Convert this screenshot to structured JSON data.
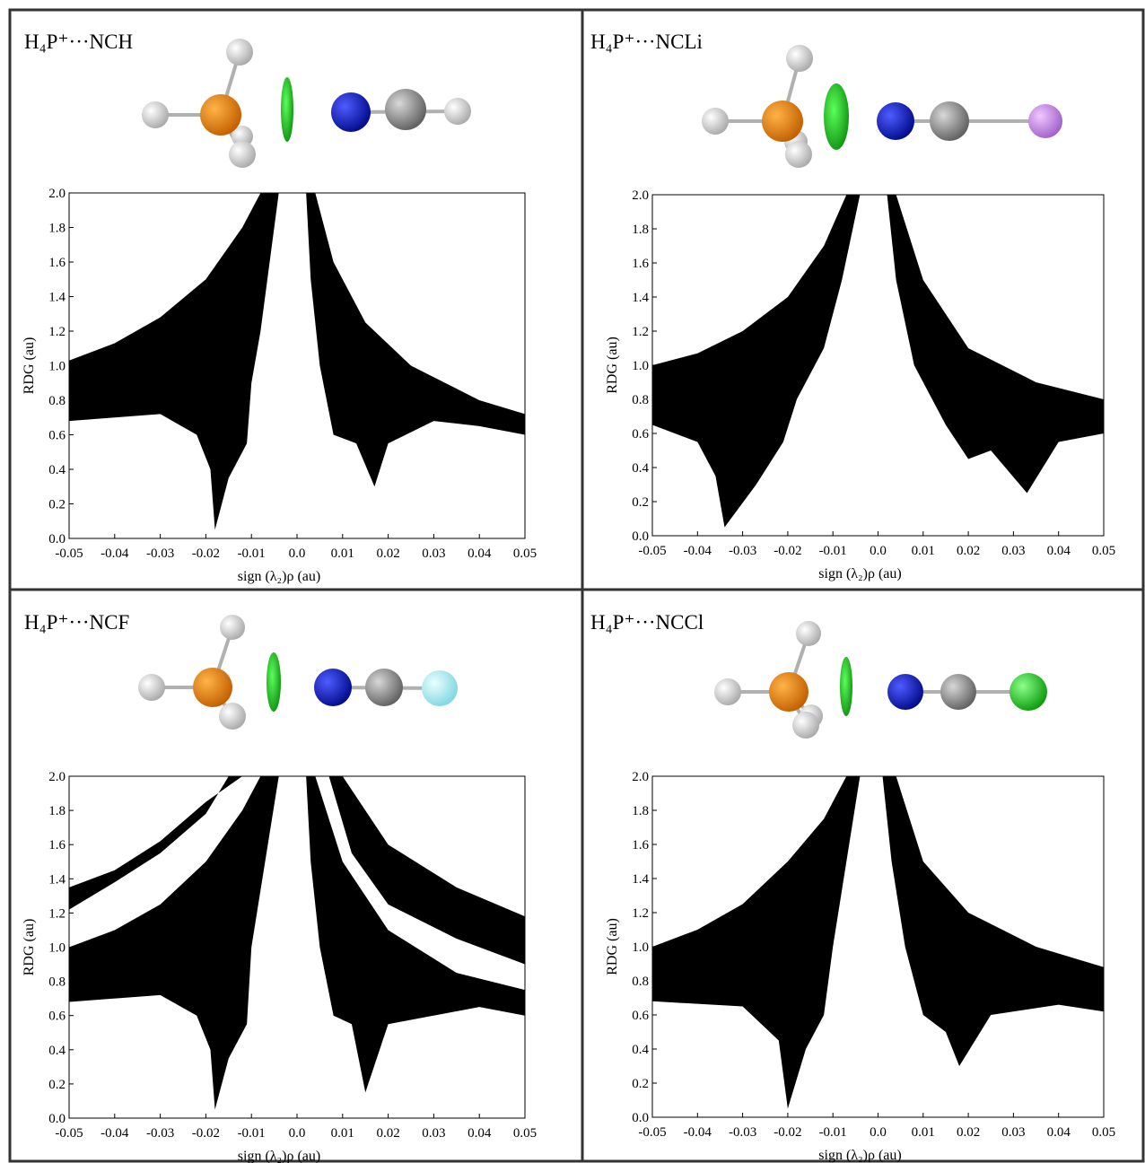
{
  "chart_data": [
    {
      "type": "area",
      "title": "H₄P⁺···NCH",
      "x_label": "sign (λ₂)ρ  (au)",
      "y_label": "RDG (au)",
      "xlim": [
        -0.05,
        0.05
      ],
      "ylim": [
        0,
        2
      ],
      "xticks": [
        -0.05,
        -0.04,
        -0.03,
        -0.02,
        -0.01,
        {
          "value": 0,
          "label": "0.0"
        },
        0.01,
        0.02,
        0.03,
        0.04,
        0.05
      ],
      "yticks": [
        {
          "value": 0,
          "label": "0.0"
        },
        0.2,
        0.4,
        0.6,
        0.8,
        {
          "value": 1,
          "label": "1.0"
        },
        1.2,
        1.4,
        1.6,
        1.8,
        {
          "value": 2,
          "label": "2.0"
        }
      ],
      "series": [
        {
          "color": "#000000",
          "x": [
            -0.05,
            -0.04,
            -0.03,
            -0.02,
            -0.012,
            -0.008,
            -0.004,
            -0.006,
            -0.008,
            -0.01,
            -0.011,
            -0.015,
            -0.018,
            -0.019,
            -0.022,
            -0.03,
            -0.04,
            -0.05
          ],
          "values": [
            1.03,
            1.13,
            1.28,
            1.5,
            1.8,
            2.0,
            2.0,
            1.6,
            1.2,
            0.9,
            0.55,
            0.35,
            0.05,
            0.4,
            0.6,
            0.72,
            0.7,
            0.68
          ]
        },
        {
          "color": "#000000",
          "x": [
            0.002,
            0.004,
            0.008,
            0.015,
            0.025,
            0.04,
            0.05,
            0.05,
            0.04,
            0.03,
            0.02,
            0.017,
            0.013,
            0.008,
            0.005,
            0.003
          ],
          "values": [
            2.0,
            2.0,
            1.6,
            1.25,
            1.0,
            0.8,
            0.72,
            0.6,
            0.65,
            0.68,
            0.55,
            0.3,
            0.55,
            0.6,
            1.0,
            1.5
          ]
        }
      ]
    },
    {
      "type": "area",
      "title": "H₄P⁺···NCLi",
      "x_label": "sign (λ₂)ρ  (au)",
      "y_label": "RDG (au)",
      "xlim": [
        -0.05,
        0.05
      ],
      "ylim": [
        0,
        2
      ],
      "xticks": [
        -0.05,
        -0.04,
        -0.03,
        -0.02,
        -0.01,
        {
          "value": 0,
          "label": "0.0"
        },
        0.01,
        0.02,
        0.03,
        0.04,
        0.05
      ],
      "yticks": [
        {
          "value": 0,
          "label": "0.0"
        },
        0.2,
        0.4,
        0.6,
        0.8,
        {
          "value": 1,
          "label": "1.0"
        },
        1.2,
        1.4,
        1.6,
        1.8,
        {
          "value": 2,
          "label": "2.0"
        }
      ],
      "series": [
        {
          "color": "#000000",
          "x": [
            -0.05,
            -0.04,
            -0.03,
            -0.02,
            -0.012,
            -0.007,
            -0.004,
            -0.008,
            -0.012,
            -0.018,
            -0.021,
            -0.027,
            -0.034,
            -0.036,
            -0.04,
            -0.05
          ],
          "values": [
            1.0,
            1.07,
            1.2,
            1.4,
            1.7,
            2.0,
            2.0,
            1.5,
            1.1,
            0.8,
            0.55,
            0.3,
            0.05,
            0.35,
            0.55,
            0.65
          ]
        },
        {
          "color": "#000000",
          "x": [
            0.002,
            0.004,
            0.01,
            0.02,
            0.035,
            0.05,
            0.05,
            0.04,
            0.033,
            0.025,
            0.02,
            0.015,
            0.008,
            0.004
          ],
          "values": [
            2.0,
            2.0,
            1.5,
            1.1,
            0.9,
            0.8,
            0.6,
            0.55,
            0.25,
            0.5,
            0.45,
            0.65,
            1.0,
            1.5
          ]
        }
      ]
    },
    {
      "type": "area",
      "title": "H₄P⁺···NCF",
      "x_label": "sign (λ₂)ρ  (au)",
      "y_label": "RDG (au)",
      "xlim": [
        -0.05,
        0.05
      ],
      "ylim": [
        0,
        2
      ],
      "xticks": [
        -0.05,
        -0.04,
        -0.03,
        -0.02,
        -0.01,
        {
          "value": 0,
          "label": "0.0"
        },
        0.01,
        0.02,
        0.03,
        0.04,
        0.05
      ],
      "yticks": [
        {
          "value": 0,
          "label": "0.0"
        },
        0.2,
        0.4,
        0.6,
        0.8,
        {
          "value": 1,
          "label": "1.0"
        },
        1.2,
        1.4,
        1.6,
        1.8,
        {
          "value": 2,
          "label": "2.0"
        }
      ],
      "series": [
        {
          "color": "#000000",
          "x": [
            -0.05,
            -0.04,
            -0.03,
            -0.02,
            -0.012,
            -0.008,
            -0.004,
            -0.007,
            -0.01,
            -0.011,
            -0.015,
            -0.018,
            -0.019,
            -0.022,
            -0.03,
            -0.05
          ],
          "values": [
            1.0,
            1.1,
            1.25,
            1.5,
            1.8,
            2.0,
            2.0,
            1.5,
            1.0,
            0.55,
            0.35,
            0.05,
            0.4,
            0.6,
            0.72,
            0.68
          ]
        },
        {
          "color": "#000000",
          "x": [
            -0.05,
            -0.04,
            -0.03,
            -0.02,
            -0.015,
            -0.012,
            -0.02,
            -0.03,
            -0.04,
            -0.05
          ],
          "values": [
            1.22,
            1.38,
            1.55,
            1.78,
            2.0,
            2.0,
            1.85,
            1.62,
            1.45,
            1.35
          ]
        },
        {
          "color": "#000000",
          "x": [
            0.002,
            0.004,
            0.01,
            0.02,
            0.035,
            0.05,
            0.05,
            0.04,
            0.02,
            0.015,
            0.012,
            0.008,
            0.005,
            0.003
          ],
          "values": [
            2.0,
            2.0,
            1.5,
            1.1,
            0.85,
            0.75,
            0.6,
            0.65,
            0.55,
            0.15,
            0.55,
            0.6,
            1.0,
            1.5
          ]
        },
        {
          "color": "#000000",
          "x": [
            0.007,
            0.01,
            0.02,
            0.035,
            0.05,
            0.05,
            0.035,
            0.02,
            0.012
          ],
          "values": [
            2.0,
            2.0,
            1.6,
            1.35,
            1.18,
            0.9,
            1.05,
            1.25,
            1.55
          ]
        }
      ]
    },
    {
      "type": "area",
      "title": "H₄P⁺···NCCl",
      "x_label": "sign (λ₂)ρ  (au)",
      "y_label": "RDG (au)",
      "xlim": [
        -0.05,
        0.05
      ],
      "ylim": [
        0,
        2
      ],
      "xticks": [
        -0.05,
        -0.04,
        -0.03,
        -0.02,
        -0.01,
        {
          "value": 0,
          "label": "0.0"
        },
        0.01,
        0.02,
        0.03,
        0.04,
        0.05
      ],
      "yticks": [
        {
          "value": 0,
          "label": "0.0"
        },
        0.2,
        0.4,
        0.6,
        0.8,
        {
          "value": 1,
          "label": "1.0"
        },
        1.2,
        1.4,
        1.6,
        1.8,
        {
          "value": 2,
          "label": "2.0"
        }
      ],
      "series": [
        {
          "color": "#000000",
          "x": [
            -0.05,
            -0.04,
            -0.03,
            -0.02,
            -0.012,
            -0.007,
            -0.004,
            -0.007,
            -0.01,
            -0.012,
            -0.016,
            -0.02,
            -0.022,
            -0.03,
            -0.05
          ],
          "values": [
            1.0,
            1.1,
            1.25,
            1.5,
            1.75,
            2.0,
            2.0,
            1.5,
            1.0,
            0.6,
            0.4,
            0.05,
            0.45,
            0.65,
            0.68
          ]
        },
        {
          "color": "#000000",
          "x": [
            0.001,
            0.004,
            0.01,
            0.02,
            0.035,
            0.05,
            0.05,
            0.04,
            0.025,
            0.018,
            0.015,
            0.01,
            0.006,
            0.003
          ],
          "values": [
            2.0,
            2.0,
            1.5,
            1.2,
            1.0,
            0.88,
            0.62,
            0.66,
            0.6,
            0.3,
            0.5,
            0.6,
            1.0,
            1.5
          ]
        }
      ]
    }
  ]
}
